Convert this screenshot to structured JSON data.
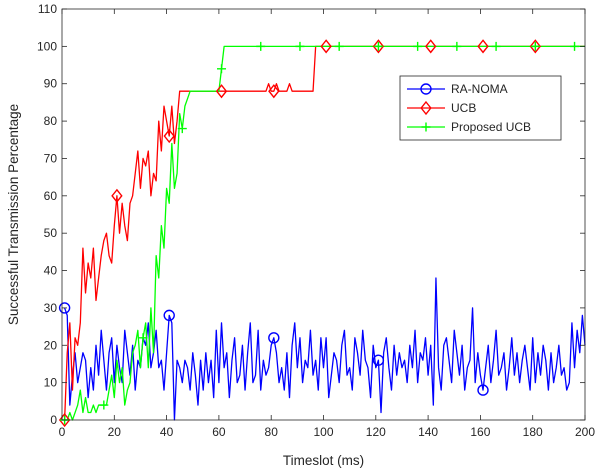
{
  "chart_data": {
    "type": "line",
    "title": "",
    "xlabel": "Timeslot (ms)",
    "ylabel": "Successful Transmission Percentage",
    "xlim": [
      0,
      200
    ],
    "ylim": [
      0,
      110
    ],
    "xticks": [
      0,
      20,
      40,
      60,
      80,
      100,
      120,
      140,
      160,
      180,
      200
    ],
    "yticks": [
      0,
      10,
      20,
      30,
      40,
      50,
      60,
      70,
      80,
      90,
      100,
      110
    ],
    "grid": false,
    "legend_position": "top-right",
    "series": [
      {
        "name": "RA-NOMA",
        "color": "#0000ff",
        "marker": "circle",
        "marker_x": [
          1,
          41,
          81,
          121,
          161
        ],
        "x": [
          1,
          2,
          3,
          4,
          5,
          6,
          7,
          8,
          9,
          10,
          11,
          12,
          13,
          14,
          15,
          16,
          17,
          18,
          19,
          20,
          21,
          22,
          23,
          24,
          25,
          26,
          27,
          28,
          29,
          30,
          31,
          32,
          33,
          34,
          35,
          36,
          37,
          38,
          39,
          40,
          41,
          42,
          43,
          44,
          45,
          46,
          47,
          48,
          49,
          50,
          51,
          52,
          53,
          54,
          55,
          56,
          57,
          58,
          59,
          60,
          61,
          62,
          63,
          64,
          65,
          66,
          67,
          68,
          69,
          70,
          71,
          72,
          73,
          74,
          75,
          76,
          77,
          78,
          79,
          80,
          81,
          82,
          83,
          84,
          85,
          86,
          87,
          88,
          89,
          90,
          91,
          92,
          93,
          94,
          95,
          96,
          97,
          98,
          99,
          100,
          101,
          102,
          103,
          104,
          105,
          106,
          107,
          108,
          109,
          110,
          111,
          112,
          113,
          114,
          115,
          116,
          117,
          118,
          119,
          120,
          121,
          122,
          123,
          124,
          125,
          126,
          127,
          128,
          129,
          130,
          131,
          132,
          133,
          134,
          135,
          136,
          137,
          138,
          139,
          140,
          141,
          142,
          143,
          144,
          145,
          146,
          147,
          148,
          149,
          150,
          151,
          152,
          153,
          154,
          155,
          156,
          157,
          158,
          159,
          160,
          161,
          162,
          163,
          164,
          165,
          166,
          167,
          168,
          169,
          170,
          171,
          172,
          173,
          174,
          175,
          176,
          177,
          178,
          179,
          180,
          181,
          182,
          183,
          184,
          185,
          186,
          187,
          188,
          189,
          190,
          191,
          192,
          193,
          194,
          195,
          196,
          197,
          198,
          199,
          200
        ],
        "y": [
          30,
          28,
          4,
          12,
          18,
          10,
          14,
          18,
          16,
          6,
          14,
          8,
          20,
          12,
          24,
          16,
          8,
          18,
          22,
          10,
          20,
          14,
          10,
          24,
          18,
          12,
          20,
          8,
          16,
          14,
          22,
          20,
          26,
          14,
          18,
          24,
          14,
          16,
          8,
          18,
          28,
          26,
          0,
          16,
          14,
          10,
          16,
          14,
          8,
          18,
          12,
          4,
          16,
          8,
          18,
          10,
          16,
          6,
          24,
          10,
          26,
          14,
          18,
          6,
          16,
          22,
          10,
          12,
          20,
          8,
          18,
          26,
          10,
          12,
          24,
          8,
          16,
          12,
          14,
          20,
          22,
          18,
          10,
          14,
          8,
          18,
          6,
          20,
          26,
          14,
          22,
          10,
          16,
          14,
          24,
          12,
          16,
          8,
          22,
          14,
          22,
          6,
          12,
          18,
          16,
          10,
          20,
          24,
          12,
          14,
          8,
          22,
          18,
          12,
          24,
          16,
          14,
          6,
          20,
          14,
          16,
          2,
          18,
          22,
          14,
          8,
          20,
          12,
          18,
          14,
          16,
          10,
          20,
          14,
          24,
          10,
          18,
          16,
          22,
          12,
          20,
          4,
          38,
          14,
          8,
          20,
          22,
          16,
          10,
          24,
          18,
          12,
          20,
          8,
          14,
          16,
          30,
          10,
          18,
          12,
          8,
          14,
          20,
          10,
          16,
          24,
          12,
          14,
          18,
          8,
          14,
          22,
          12,
          18,
          10,
          16,
          20,
          14,
          8,
          22,
          10,
          18,
          12,
          20,
          16,
          8,
          18,
          10,
          14,
          20,
          12,
          14,
          8,
          10,
          26,
          14,
          24,
          18,
          28,
          20
        ]
      },
      {
        "name": "UCB",
        "color": "#ff0000",
        "marker": "diamond",
        "marker_x": [
          1,
          21,
          41,
          61,
          81,
          101,
          121,
          141,
          161,
          181
        ],
        "x": [
          1,
          2,
          3,
          4,
          5,
          6,
          7,
          8,
          9,
          10,
          11,
          12,
          13,
          14,
          15,
          16,
          17,
          18,
          19,
          20,
          21,
          22,
          23,
          24,
          25,
          26,
          27,
          28,
          29,
          30,
          31,
          32,
          33,
          34,
          35,
          36,
          37,
          38,
          39,
          40,
          41,
          42,
          43,
          44,
          45,
          46,
          47,
          48,
          49,
          50,
          51,
          52,
          53,
          54,
          55,
          56,
          57,
          58,
          59,
          60,
          61,
          62,
          63,
          64,
          65,
          66,
          67,
          68,
          69,
          70,
          71,
          72,
          73,
          74,
          75,
          76,
          77,
          78,
          79,
          80,
          81,
          82,
          83,
          84,
          85,
          86,
          87,
          88,
          89,
          90,
          91,
          92,
          93,
          94,
          95,
          96,
          97,
          98,
          99,
          100,
          101,
          102,
          103,
          104,
          105,
          106,
          107,
          108,
          109,
          110,
          111,
          112,
          113,
          114,
          115,
          116,
          117,
          118,
          119,
          120,
          121,
          122,
          123,
          124,
          125,
          126,
          127,
          128,
          129,
          130,
          131,
          132,
          133,
          134,
          135,
          136,
          137,
          138,
          139,
          140,
          141,
          142,
          143,
          144,
          145,
          146,
          147,
          148,
          149,
          150,
          151,
          152,
          153,
          154,
          155,
          156,
          157,
          158,
          159,
          160,
          161,
          162,
          163,
          164,
          165,
          166,
          167,
          168,
          169,
          170,
          171,
          172,
          173,
          174,
          175,
          176,
          177,
          178,
          179,
          180,
          181,
          182,
          183,
          184,
          185,
          186,
          187,
          188,
          189,
          190,
          191,
          192,
          193,
          194,
          195,
          196,
          197,
          198,
          199,
          200
        ],
        "y": [
          0,
          18,
          26,
          8,
          22,
          20,
          26,
          46,
          34,
          42,
          38,
          46,
          32,
          38,
          44,
          48,
          50,
          44,
          42,
          52,
          60,
          50,
          58,
          52,
          48,
          58,
          60,
          66,
          72,
          62,
          70,
          68,
          72,
          60,
          66,
          64,
          80,
          72,
          84,
          80,
          76,
          84,
          74,
          80,
          88,
          88,
          88,
          88,
          88,
          88,
          88,
          88,
          88,
          88,
          88,
          88,
          88,
          88,
          88,
          88,
          88,
          88,
          88,
          88,
          88,
          88,
          88,
          88,
          88,
          88,
          88,
          88,
          88,
          88,
          88,
          88,
          88,
          88,
          90,
          88,
          88,
          90,
          88,
          88,
          88,
          88,
          90,
          88,
          88,
          88,
          88,
          88,
          88,
          88,
          88,
          88,
          100,
          100,
          100,
          100,
          100,
          100,
          100,
          100,
          100,
          100,
          100,
          100,
          100,
          100,
          100,
          100,
          100,
          100,
          100,
          100,
          100,
          100,
          100,
          100,
          100,
          100,
          100,
          100,
          100,
          100,
          100,
          100,
          100,
          100,
          100,
          100,
          100,
          100,
          100,
          100,
          100,
          100,
          100,
          100,
          100,
          100,
          100,
          100,
          100,
          100,
          100,
          100,
          100,
          100,
          100,
          100,
          100,
          100,
          100,
          100,
          100,
          100,
          100,
          100,
          100,
          100,
          100,
          100,
          100,
          100,
          100,
          100,
          100,
          100,
          100,
          100,
          100,
          100,
          100,
          100,
          100,
          100,
          100,
          100,
          100,
          100,
          100,
          100,
          100,
          100,
          100,
          100,
          100,
          100,
          100,
          100,
          100,
          100,
          100,
          100,
          100,
          100,
          100,
          100
        ]
      },
      {
        "name": "Proposed UCB",
        "color": "#00ff00",
        "marker": "plus",
        "marker_x": [
          1,
          16,
          31,
          46,
          61,
          76,
          91,
          106,
          121,
          136,
          151,
          166,
          181,
          196
        ],
        "x": [
          1,
          2,
          3,
          4,
          5,
          6,
          7,
          8,
          9,
          10,
          11,
          12,
          13,
          14,
          15,
          16,
          17,
          18,
          19,
          20,
          21,
          22,
          23,
          24,
          25,
          26,
          27,
          28,
          29,
          30,
          31,
          32,
          33,
          34,
          35,
          36,
          37,
          38,
          39,
          40,
          41,
          42,
          43,
          44,
          45,
          46,
          47,
          48,
          49,
          50,
          51,
          52,
          53,
          54,
          55,
          56,
          57,
          58,
          59,
          60,
          61,
          62,
          63,
          64,
          65,
          66,
          67,
          68,
          69,
          70,
          71,
          72,
          73,
          74,
          75,
          76,
          77,
          78,
          79,
          80,
          81,
          82,
          83,
          84,
          85,
          86,
          87,
          88,
          89,
          90,
          91,
          92,
          93,
          94,
          95,
          96,
          97,
          98,
          99,
          100,
          101,
          102,
          103,
          104,
          105,
          106,
          107,
          108,
          109,
          110,
          111,
          112,
          113,
          114,
          115,
          116,
          117,
          118,
          119,
          120,
          121,
          122,
          123,
          124,
          125,
          126,
          127,
          128,
          129,
          130,
          131,
          132,
          133,
          134,
          135,
          136,
          137,
          138,
          139,
          140,
          141,
          142,
          143,
          144,
          145,
          146,
          147,
          148,
          149,
          150,
          151,
          152,
          153,
          154,
          155,
          156,
          157,
          158,
          159,
          160,
          161,
          162,
          163,
          164,
          165,
          166,
          167,
          168,
          169,
          170,
          171,
          172,
          173,
          174,
          175,
          176,
          177,
          178,
          179,
          180,
          181,
          182,
          183,
          184,
          185,
          186,
          187,
          188,
          189,
          190,
          191,
          192,
          193,
          194,
          195,
          196,
          197,
          198,
          199,
          200
        ],
        "y": [
          0,
          0,
          2,
          0,
          2,
          4,
          8,
          2,
          6,
          2,
          2,
          4,
          2,
          4,
          4,
          4,
          4,
          8,
          12,
          6,
          16,
          10,
          14,
          4,
          8,
          10,
          18,
          20,
          24,
          14,
          22,
          26,
          14,
          30,
          18,
          44,
          38,
          52,
          46,
          62,
          58,
          74,
          62,
          66,
          82,
          78,
          84,
          86,
          88,
          88,
          88,
          88,
          88,
          88,
          88,
          88,
          88,
          88,
          88,
          88,
          94,
          100,
          100,
          100,
          100,
          100,
          100,
          100,
          100,
          100,
          100,
          100,
          100,
          100,
          100,
          100,
          100,
          100,
          100,
          100,
          100,
          100,
          100,
          100,
          100,
          100,
          100,
          100,
          100,
          100,
          100,
          100,
          100,
          100,
          100,
          100,
          100,
          100,
          100,
          100,
          100,
          100,
          100,
          100,
          100,
          100,
          100,
          100,
          100,
          100,
          100,
          100,
          100,
          100,
          100,
          100,
          100,
          100,
          100,
          100,
          100,
          100,
          100,
          100,
          100,
          100,
          100,
          100,
          100,
          100,
          100,
          100,
          100,
          100,
          100,
          100,
          100,
          100,
          100,
          100,
          100,
          100,
          100,
          100,
          100,
          100,
          100,
          100,
          100,
          100,
          100,
          100,
          100,
          100,
          100,
          100,
          100,
          100,
          100,
          100,
          100,
          100,
          100,
          100,
          100,
          100,
          100,
          100,
          100,
          100,
          100,
          100,
          100,
          100,
          100,
          100,
          100,
          100,
          100,
          100,
          100,
          100,
          100,
          100,
          100,
          100,
          100,
          100,
          100,
          100,
          100,
          100,
          100,
          100,
          100,
          100,
          100,
          100,
          100,
          100
        ]
      }
    ]
  }
}
